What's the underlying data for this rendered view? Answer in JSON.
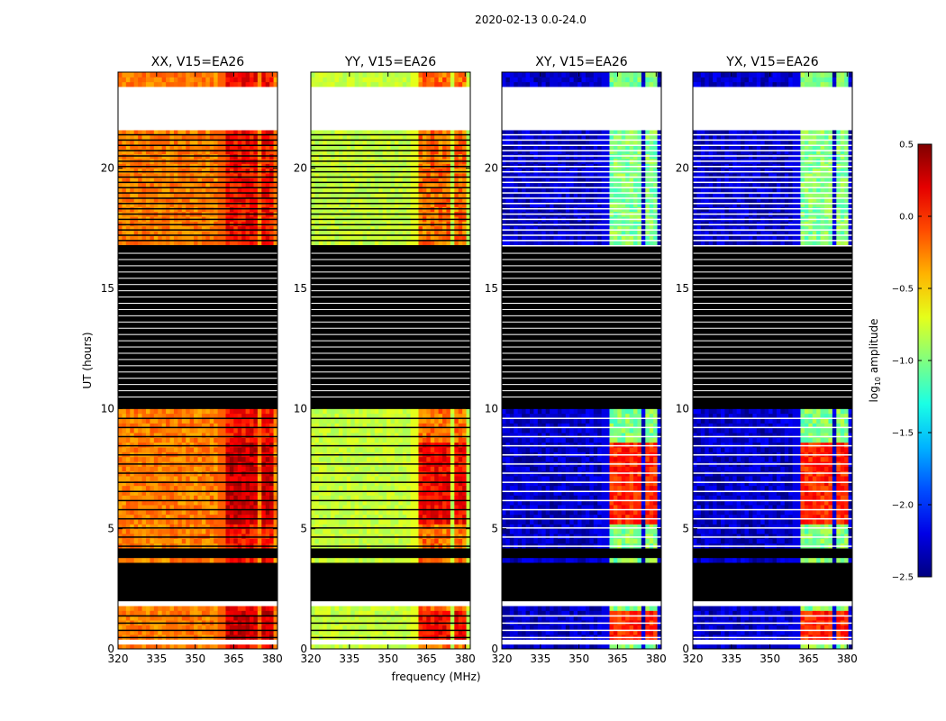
{
  "chart_data": {
    "type": "heatmap",
    "title": "2020-02-13 0.0-24.0",
    "xlabel": "frequency (MHz)",
    "ylabel": "UT (hours)",
    "xlim": [
      320,
      382
    ],
    "ylim": [
      0,
      24
    ],
    "x_ticks": [
      320,
      335,
      350,
      365,
      380
    ],
    "y_ticks": [
      0,
      5,
      10,
      15,
      20
    ],
    "panels": [
      {
        "title": "XX, V15=EA26",
        "base_level": -0.25,
        "band_level": 0.1,
        "peak_level": 0.45,
        "noise": 0.15
      },
      {
        "title": "YY, V15=EA26",
        "base_level": -0.8,
        "band_level": -0.2,
        "peak_level": 0.3,
        "noise": 0.1
      },
      {
        "title": "XY, V15=EA26",
        "base_level": -2.3,
        "band_level": -1.0,
        "peak_level": 0.2,
        "noise": 0.2
      },
      {
        "title": "YX, V15=EA26",
        "base_level": -2.3,
        "band_level": -1.0,
        "peak_level": 0.2,
        "noise": 0.2
      }
    ],
    "band_columns_mhz": [
      [
        362,
        366
      ],
      [
        367,
        370.5
      ],
      [
        371.5,
        375
      ],
      [
        376.5,
        380
      ]
    ],
    "blank_ranges_ut": [
      [
        0.3,
        0.45
      ],
      [
        1.75,
        2.0
      ],
      [
        21.7,
        23.45
      ]
    ],
    "masked_ranges_ut": [
      [
        2.0,
        3.7
      ],
      [
        3.9,
        4.25
      ],
      [
        10.05,
        16.75
      ],
      [
        18.0,
        18.1
      ]
    ],
    "hot_ranges_ut": [
      [
        5.2,
        8.6
      ],
      [
        0.3,
        1.7
      ]
    ],
    "colorbar": {
      "label": "log10 amplitude",
      "label_main": "log",
      "label_sub": "10",
      "label_rest": " amplitude",
      "min": -2.5,
      "max": 0.5,
      "ticks": [
        "0.5",
        "0.0",
        "−0.5",
        "−1.0",
        "−1.5",
        "−2.0",
        "−2.5"
      ],
      "tick_values": [
        0.5,
        0.0,
        -0.5,
        -1.0,
        -1.5,
        -2.0,
        -2.5
      ]
    },
    "colors": {
      "masked": "#000000",
      "blank": "#ffffff",
      "frame": "#000000"
    }
  }
}
